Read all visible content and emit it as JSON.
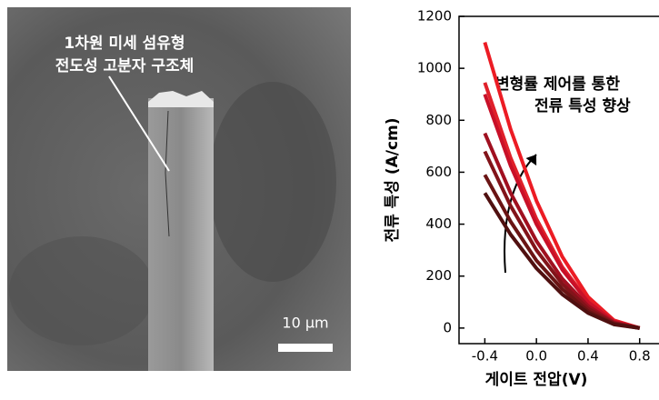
{
  "image": {
    "annotation_lines": [
      "1차원 미세 섬유형",
      "전도성 고분자 구조체"
    ],
    "scale_bar": "10 μm"
  },
  "chart_data": {
    "type": "line",
    "x": [
      -0.4,
      -0.2,
      0,
      0.2,
      0.4,
      0.6,
      0.8
    ],
    "series": [
      {
        "color": "#ec1c24",
        "values": [
          1100,
          765,
          490,
          275,
          120,
          30,
          0
        ]
      },
      {
        "color": "#e0202a",
        "values": [
          945,
          655,
          420,
          235,
          105,
          26,
          0
        ]
      },
      {
        "color": "#c81028",
        "values": [
          900,
          625,
          400,
          225,
          100,
          25,
          0
        ]
      },
      {
        "color": "#a01020",
        "values": [
          750,
          520,
          335,
          190,
          85,
          21,
          0
        ]
      },
      {
        "color": "#82141a",
        "values": [
          680,
          470,
          300,
          170,
          75,
          19,
          0
        ]
      },
      {
        "color": "#6a1414",
        "values": [
          590,
          410,
          260,
          150,
          65,
          16,
          0
        ]
      },
      {
        "color": "#501010",
        "values": [
          520,
          360,
          230,
          130,
          58,
          14,
          0
        ]
      }
    ],
    "xlim": [
      -0.6,
      0.95
    ],
    "ylim": [
      -60,
      1200
    ],
    "xticks": [
      -0.4,
      {
        "value": 0,
        "label": "0.0"
      },
      0.4,
      0.8
    ],
    "yticks": [
      0,
      200,
      400,
      600,
      800,
      1000,
      1200
    ],
    "xlabel": "게이트 전압(V)",
    "ylabel": "전류 특성 (A/cm)",
    "annotation_lines": [
      "변형률 제어를 통한",
      "전류 특성 향상"
    ]
  }
}
